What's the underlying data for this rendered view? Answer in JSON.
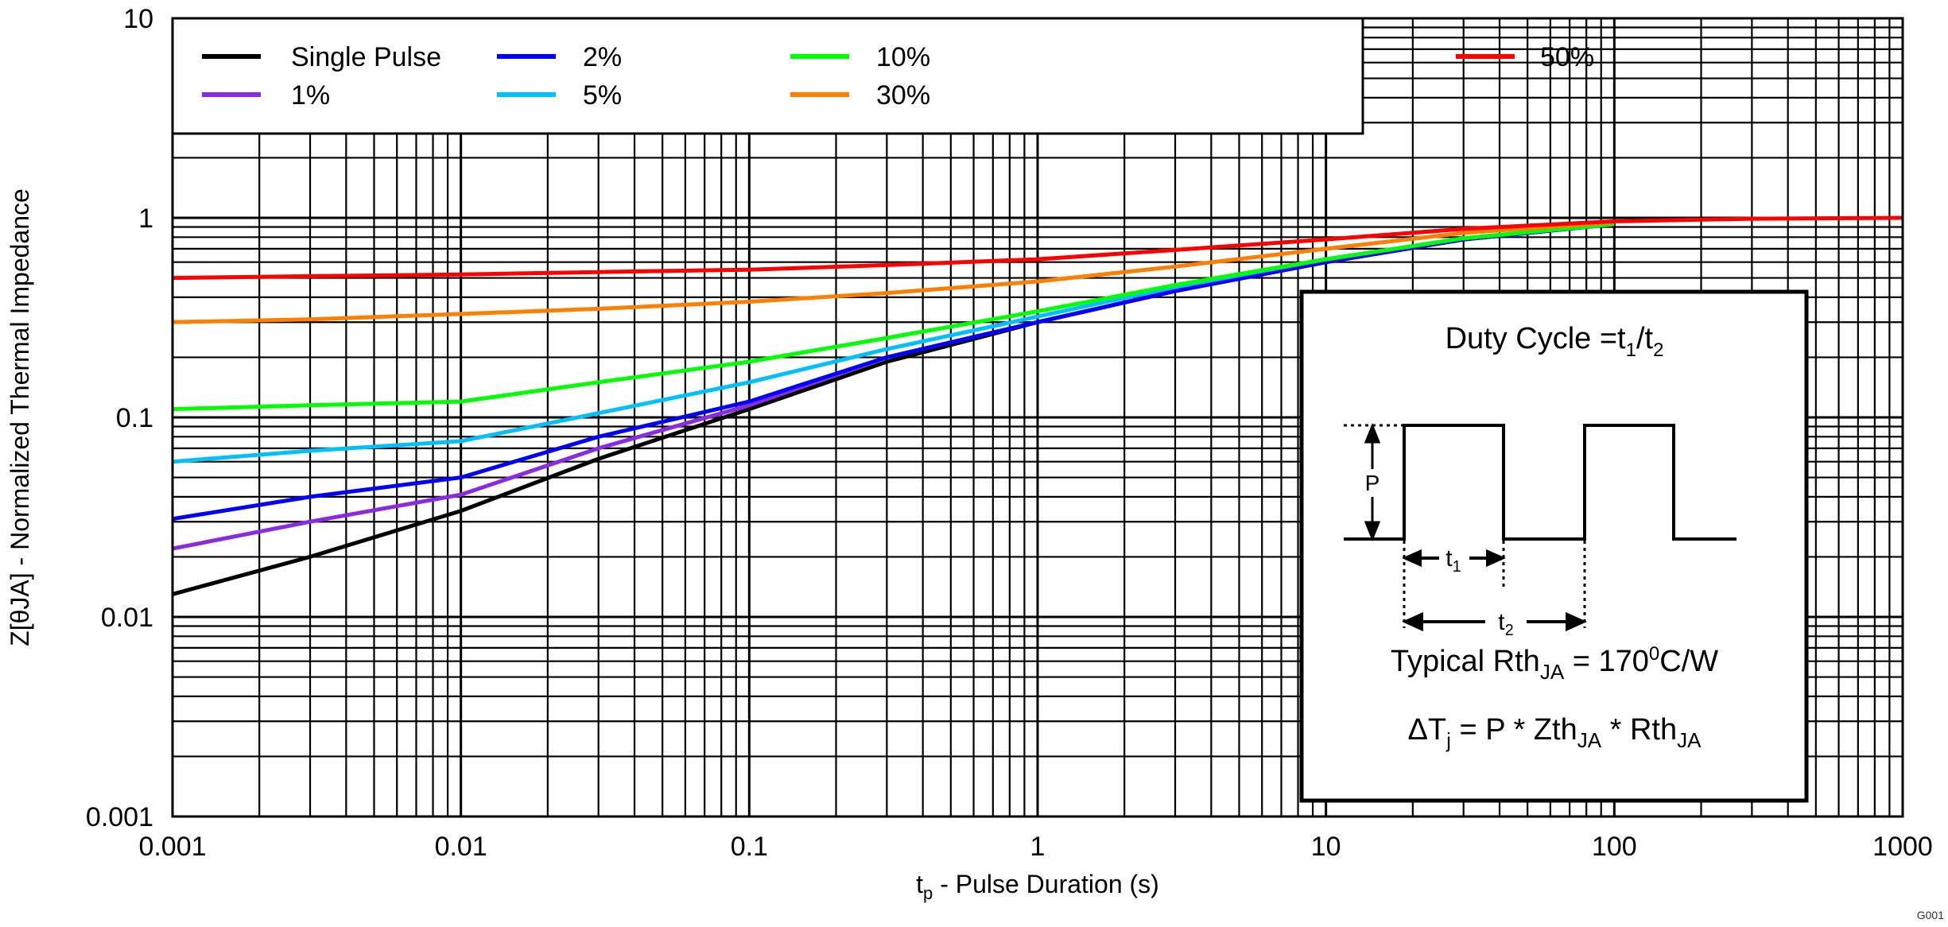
{
  "chart_data": {
    "type": "line",
    "title": "",
    "xlabel": {
      "main": "t",
      "sub": "p",
      "rest": " - Pulse Duration (s)"
    },
    "ylabel": "Z[θJA] - Normalized Thermal Impedance",
    "xscale": "log",
    "yscale": "log",
    "xlim": [
      0.001,
      1000
    ],
    "ylim": [
      0.001,
      10
    ],
    "xticks": [
      "0.001",
      "0.01",
      "0.1",
      "1",
      "10",
      "100",
      "1000"
    ],
    "yticks": [
      "0.001",
      "0.01",
      "0.1",
      "1",
      "10"
    ],
    "grid": true,
    "legend_placement": "top",
    "series": [
      {
        "name": "Single Pulse",
        "color": "#000000",
        "x": [
          0.001,
          0.003,
          0.01,
          0.03,
          0.1,
          0.3,
          1,
          3,
          10,
          30,
          100
        ],
        "y": [
          0.013,
          0.02,
          0.034,
          0.062,
          0.11,
          0.19,
          0.3,
          0.43,
          0.6,
          0.78,
          0.93
        ]
      },
      {
        "name": "1%",
        "color": "#8a2be2",
        "x": [
          0.001,
          0.003,
          0.01,
          0.03,
          0.1,
          0.3,
          1,
          3,
          10,
          30,
          100
        ],
        "y": [
          0.022,
          0.03,
          0.041,
          0.07,
          0.115,
          0.2,
          0.3,
          0.43,
          0.6,
          0.78,
          0.93
        ]
      },
      {
        "name": "2%",
        "color": "#0000ff",
        "x": [
          0.001,
          0.003,
          0.01,
          0.03,
          0.1,
          0.3,
          1,
          3,
          10,
          30,
          100
        ],
        "y": [
          0.031,
          0.04,
          0.05,
          0.08,
          0.12,
          0.2,
          0.3,
          0.43,
          0.6,
          0.78,
          0.93
        ]
      },
      {
        "name": "5%",
        "color": "#00bfff",
        "x": [
          0.001,
          0.003,
          0.01,
          0.03,
          0.1,
          0.3,
          1,
          3,
          10,
          30,
          100
        ],
        "y": [
          0.06,
          0.068,
          0.076,
          0.105,
          0.15,
          0.22,
          0.32,
          0.45,
          0.62,
          0.79,
          0.93
        ]
      },
      {
        "name": "10%",
        "color": "#00ff00",
        "x": [
          0.001,
          0.003,
          0.01,
          0.03,
          0.1,
          0.3,
          1,
          3,
          10,
          30,
          100
        ],
        "y": [
          0.11,
          0.115,
          0.12,
          0.15,
          0.19,
          0.25,
          0.34,
          0.46,
          0.62,
          0.79,
          0.93
        ]
      },
      {
        "name": "30%",
        "color": "#ff7f00",
        "x": [
          0.001,
          0.003,
          0.01,
          0.03,
          0.1,
          0.3,
          1,
          3,
          10,
          30,
          100
        ],
        "y": [
          0.3,
          0.31,
          0.33,
          0.35,
          0.38,
          0.42,
          0.48,
          0.57,
          0.7,
          0.84,
          0.95
        ]
      },
      {
        "name": "50%",
        "color": "#ff0000",
        "x": [
          0.001,
          0.003,
          0.01,
          0.03,
          0.1,
          0.3,
          1,
          3,
          10,
          30,
          100,
          300,
          1000
        ],
        "y": [
          0.5,
          0.51,
          0.52,
          0.535,
          0.55,
          0.58,
          0.62,
          0.69,
          0.78,
          0.88,
          0.96,
          0.99,
          1.0
        ]
      }
    ],
    "inset": {
      "duty_cycle": {
        "text": "Duty Cycle =t",
        "sub1": "1",
        "slash": "/t",
        "sub2": "2"
      },
      "p_label": "P",
      "t1_label": {
        "main": "t",
        "sub": "1"
      },
      "t2_label": {
        "main": "t",
        "sub": "2"
      },
      "typical": {
        "text": "Typical Rth",
        "sub": "JA",
        "eq": " = 170",
        "sup": "0",
        "unit": "C/W"
      },
      "delta": {
        "a": "ΔT",
        "a_sub": "j",
        "b": " = P * Zth",
        "b_sub": "JA",
        "c": " * Rth",
        "c_sub": "JA"
      }
    },
    "figure_id": "G001"
  }
}
